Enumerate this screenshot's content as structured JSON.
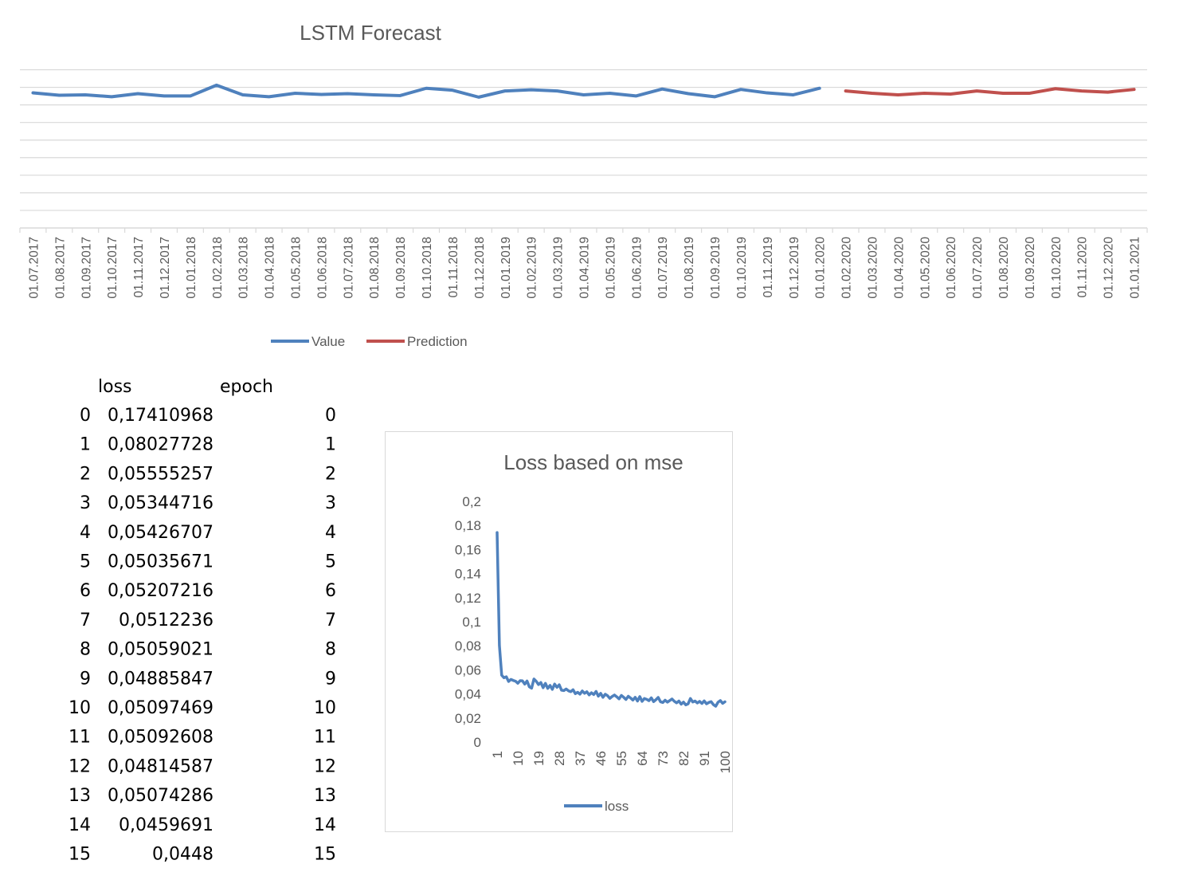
{
  "chart_data": [
    {
      "type": "line",
      "title": "LSTM Forecast",
      "categories": [
        "01.07.2017",
        "01.08.2017",
        "01.09.2017",
        "01.10.2017",
        "01.11.2017",
        "01.12.2017",
        "01.01.2018",
        "01.02.2018",
        "01.03.2018",
        "01.04.2018",
        "01.05.2018",
        "01.06.2018",
        "01.07.2018",
        "01.08.2018",
        "01.09.2018",
        "01.10.2018",
        "01.11.2018",
        "01.12.2018",
        "01.01.2019",
        "01.02.2019",
        "01.03.2019",
        "01.04.2019",
        "01.05.2019",
        "01.06.2019",
        "01.07.2019",
        "01.08.2019",
        "01.09.2019",
        "01.10.2019",
        "01.11.2019",
        "01.12.2019",
        "01.01.2020",
        "01.02.2020",
        "01.03.2020",
        "01.04.2020",
        "01.05.2020",
        "01.06.2020",
        "01.07.2020",
        "01.08.2020",
        "01.09.2020",
        "01.10.2020",
        "01.11.2020",
        "01.12.2020",
        "01.01.2021"
      ],
      "series": [
        {
          "name": "Value",
          "color": "#4f81bd",
          "values": [
            0.8,
            0.74,
            0.75,
            0.7,
            0.78,
            0.72,
            0.72,
            1.0,
            0.75,
            0.7,
            0.79,
            0.76,
            0.78,
            0.75,
            0.73,
            0.92,
            0.87,
            0.69,
            0.85,
            0.88,
            0.85,
            0.75,
            0.79,
            0.72,
            0.9,
            0.78,
            0.7,
            0.89,
            0.8,
            0.75,
            0.92,
            null,
            null,
            null,
            null,
            null,
            null,
            null,
            null,
            null,
            null,
            null,
            null
          ]
        },
        {
          "name": "Prediction",
          "color": "#c0504d",
          "values": [
            null,
            null,
            null,
            null,
            null,
            null,
            null,
            null,
            null,
            null,
            null,
            null,
            null,
            null,
            null,
            null,
            null,
            null,
            null,
            null,
            null,
            null,
            null,
            null,
            null,
            null,
            null,
            null,
            null,
            null,
            null,
            0.85,
            0.79,
            0.75,
            0.79,
            0.77,
            0.85,
            0.79,
            0.79,
            0.91,
            0.85,
            0.82,
            0.89
          ]
        }
      ],
      "ylim": [
        -2.7,
        1.4
      ],
      "y_axis_labels_shown": false,
      "grid": true,
      "legend_position": "bottom"
    },
    {
      "type": "line",
      "title": "Loss based on mse",
      "x_tick_labels": [
        "1",
        "10",
        "19",
        "28",
        "37",
        "46",
        "55",
        "64",
        "73",
        "82",
        "91",
        "100"
      ],
      "y_tick_labels": [
        "0",
        "0,02",
        "0,04",
        "0,06",
        "0,08",
        "0,1",
        "0,12",
        "0,14",
        "0,16",
        "0,18",
        "0,2"
      ],
      "ylim": [
        0,
        0.2
      ],
      "xlim": [
        1,
        100
      ],
      "grid": false,
      "legend_position": "bottom",
      "series": [
        {
          "name": "loss",
          "color": "#4f81bd",
          "values": [
            0.17410968,
            0.08027728,
            0.05555257,
            0.05344716,
            0.05426707,
            0.05035671,
            0.05207216,
            0.0512236,
            0.05059021,
            0.04885847,
            0.05097469,
            0.05092608,
            0.04814587,
            0.05074286,
            0.0459691,
            0.0448,
            0.0524,
            0.0505,
            0.0478,
            0.0495,
            0.0452,
            0.0488,
            0.0446,
            0.0471,
            0.0438,
            0.0482,
            0.0455,
            0.0476,
            0.0431,
            0.0428,
            0.0441,
            0.0426,
            0.0419,
            0.0435,
            0.0402,
            0.0414,
            0.0398,
            0.0425,
            0.0405,
            0.0418,
            0.0392,
            0.041,
            0.0395,
            0.0421,
            0.0381,
            0.0405,
            0.0372,
            0.0398,
            0.0385,
            0.0363,
            0.0379,
            0.0391,
            0.0376,
            0.0359,
            0.0388,
            0.0372,
            0.0354,
            0.0381,
            0.0366,
            0.0349,
            0.0372,
            0.0341,
            0.0378,
            0.0338,
            0.0362,
            0.0355,
            0.0344,
            0.0368,
            0.0336,
            0.0352,
            0.0371,
            0.0335,
            0.0329,
            0.0348,
            0.0332,
            0.0345,
            0.0358,
            0.0339,
            0.0326,
            0.0341,
            0.0315,
            0.0332,
            0.0309,
            0.0318,
            0.0362,
            0.0333,
            0.0341,
            0.0325,
            0.0338,
            0.0321,
            0.0342,
            0.0318,
            0.0329,
            0.0336,
            0.0311,
            0.0298,
            0.0331,
            0.0345,
            0.0322,
            0.0335
          ]
        }
      ]
    }
  ],
  "table": {
    "headers": [
      "loss",
      "epoch"
    ],
    "rows": [
      [
        "0",
        "0,17410968",
        "0"
      ],
      [
        "1",
        "0,08027728",
        "1"
      ],
      [
        "2",
        "0,05555257",
        "2"
      ],
      [
        "3",
        "0,05344716",
        "3"
      ],
      [
        "4",
        "0,05426707",
        "4"
      ],
      [
        "5",
        "0,05035671",
        "5"
      ],
      [
        "6",
        "0,05207216",
        "6"
      ],
      [
        "7",
        "0,0512236",
        "7"
      ],
      [
        "8",
        "0,05059021",
        "8"
      ],
      [
        "9",
        "0,04885847",
        "9"
      ],
      [
        "10",
        "0,05097469",
        "10"
      ],
      [
        "11",
        "0,05092608",
        "11"
      ],
      [
        "12",
        "0,04814587",
        "12"
      ],
      [
        "13",
        "0,05074286",
        "13"
      ],
      [
        "14",
        "0,0459691",
        "14"
      ],
      [
        "15",
        "0,0448",
        "15"
      ]
    ]
  }
}
